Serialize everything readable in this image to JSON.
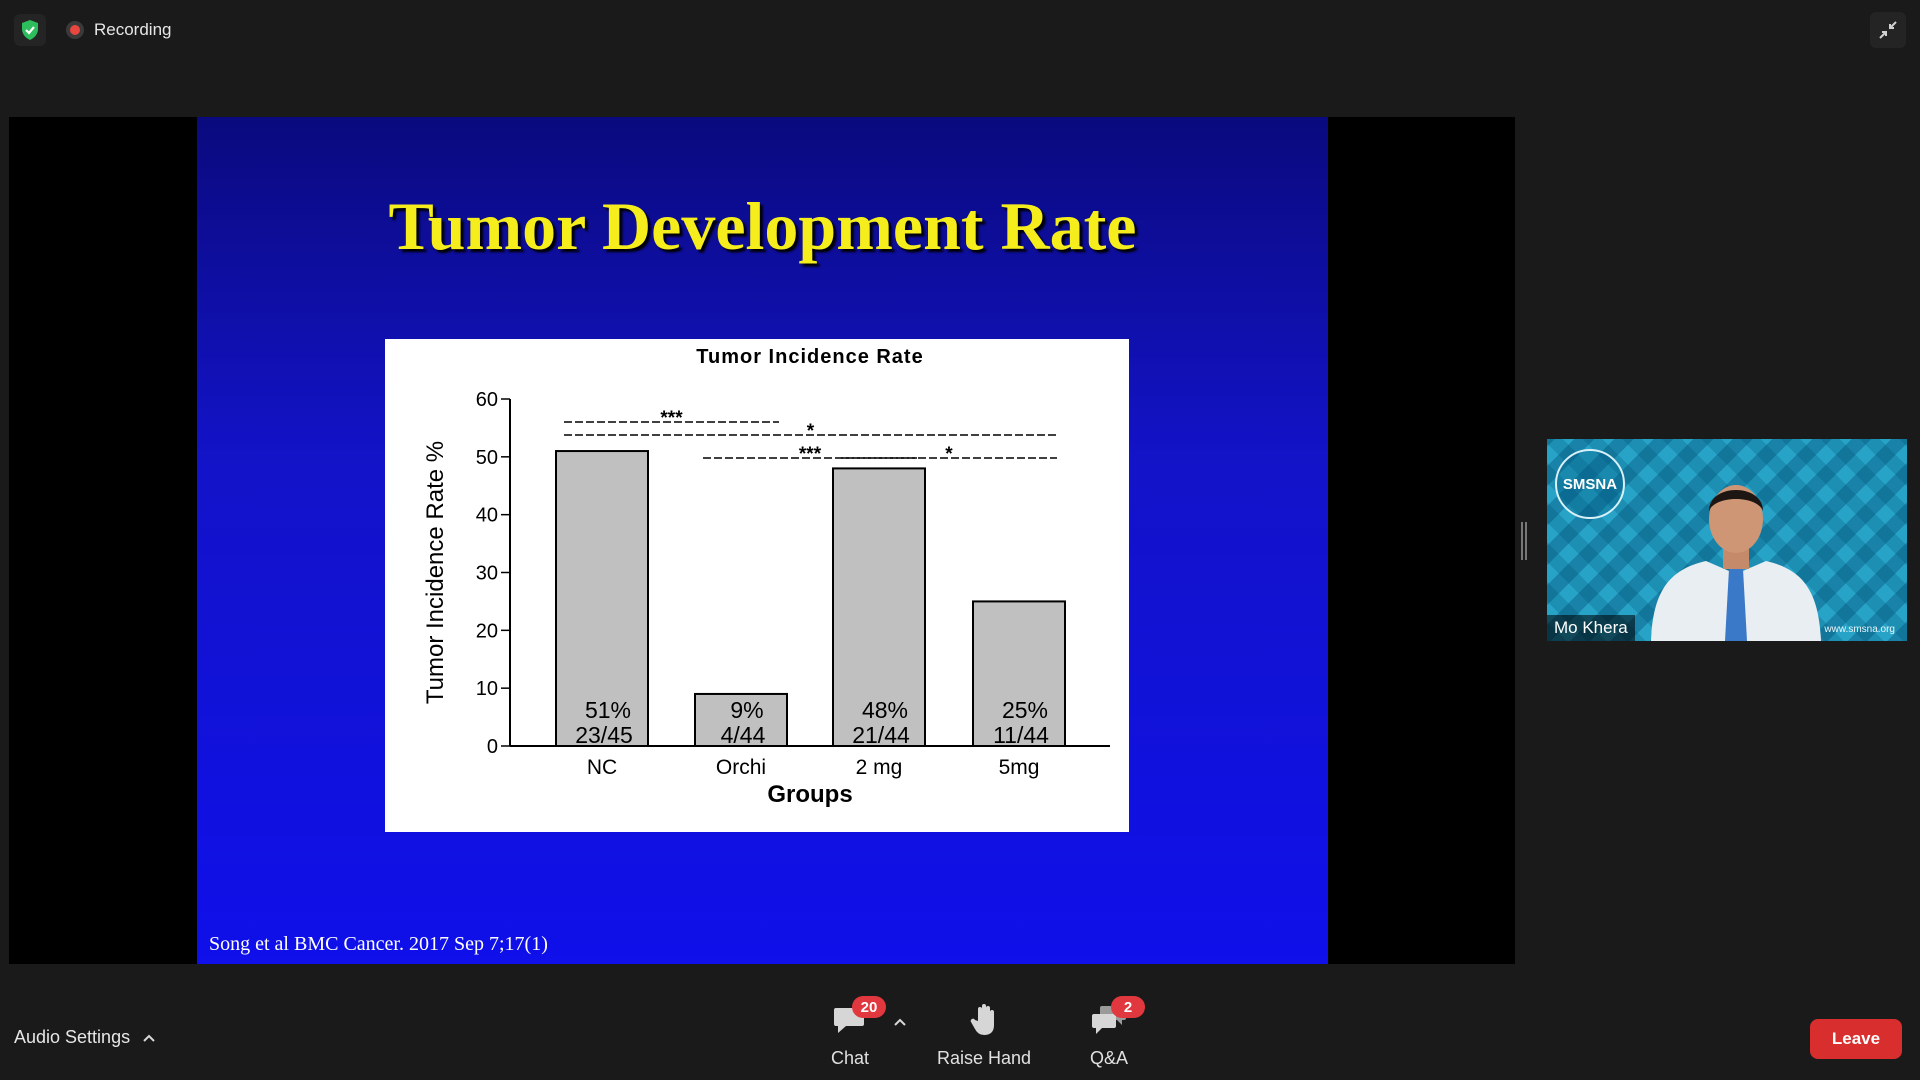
{
  "topbar": {
    "recording_label": "Recording",
    "icons": {
      "security": "shield-check-icon",
      "recording": "record-icon",
      "exit_fullscreen": "exit-fullscreen-icon"
    }
  },
  "slide": {
    "title": "Tumor Development Rate",
    "citation": "Song et al BMC Cancer. 2017 Sep 7;17(1)"
  },
  "chart_data": {
    "type": "bar",
    "title": "Tumor Incidence Rate",
    "xlabel": "Groups",
    "ylabel": "Tumor Incidence Rate %",
    "ylim": [
      0,
      60
    ],
    "yticks": [
      0,
      10,
      20,
      30,
      40,
      50,
      60
    ],
    "categories": [
      "NC",
      "Orchi",
      "2 mg",
      "5mg"
    ],
    "values": [
      51,
      9,
      48,
      25
    ],
    "data_labels": [
      {
        "pct": "51%",
        "ratio": "23/45"
      },
      {
        "pct": "9%",
        "ratio": "4/44"
      },
      {
        "pct": "48%",
        "ratio": "21/44"
      },
      {
        "pct": "25%",
        "ratio": "11/44"
      }
    ],
    "significance": [
      {
        "from": 0,
        "to": 1,
        "label": "***"
      },
      {
        "from": 0,
        "to": 3,
        "label": "*"
      },
      {
        "from": 1,
        "to": 2,
        "label": "***"
      },
      {
        "from": 2,
        "to": 3,
        "label": "*"
      }
    ],
    "grid": false,
    "colors": {
      "bar": "#c0c0c0",
      "bar_edge": "#000000"
    }
  },
  "video": {
    "participant_name": "Mo Khera",
    "logo_text": "SMSNA",
    "website": "www.smsna.org"
  },
  "toolbar": {
    "audio_settings_label": "Audio Settings",
    "chat": {
      "label": "Chat",
      "badge": "20",
      "icon": "chat-icon"
    },
    "raise_hand": {
      "label": "Raise Hand",
      "icon": "raise-hand-icon"
    },
    "qa": {
      "label": "Q&A",
      "badge": "2",
      "icon": "qa-icon"
    },
    "leave_label": "Leave"
  },
  "colors": {
    "leave": "#d92e2e",
    "badge": "#e0383e",
    "slide_title": "#f5ee1c",
    "slide_bg": "#1313c8"
  }
}
